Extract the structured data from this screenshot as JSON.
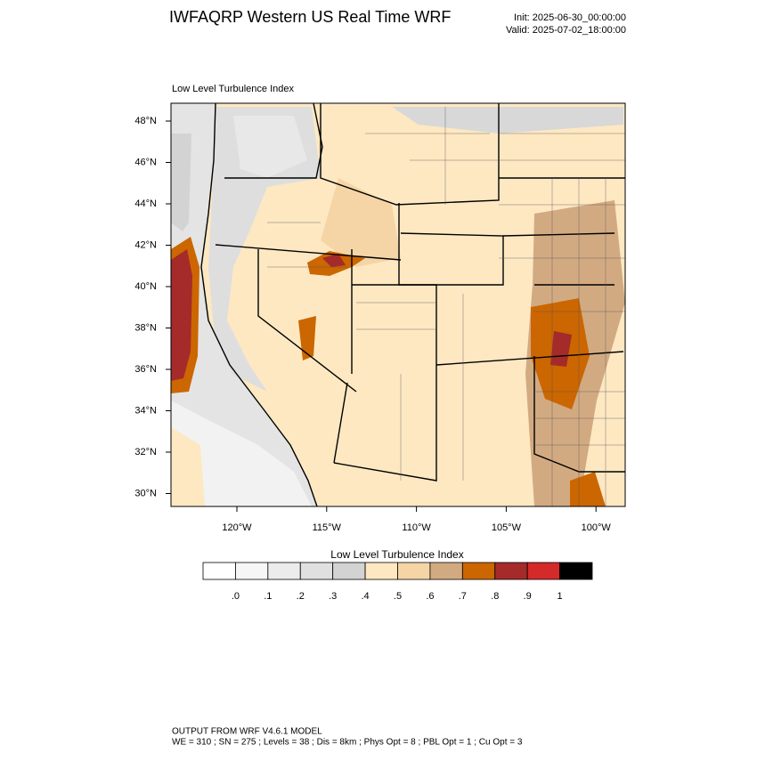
{
  "header": {
    "title": "IWFAQRP Western US Real Time WRF",
    "init": "Init: 2025-06-30_00:00:00",
    "valid": "Valid: 2025-07-02_18:00:00"
  },
  "map": {
    "subtitle": "Low Level Turbulence Index",
    "lat_labels": [
      "48°N",
      "46°N",
      "44°N",
      "42°N",
      "40°N",
      "38°N",
      "36°N",
      "34°N",
      "32°N",
      "30°N"
    ],
    "lon_labels": [
      "120°W",
      "115°W",
      "110°W",
      "105°W",
      "100°W"
    ]
  },
  "colorbar": {
    "title": "Low Level Turbulence Index",
    "labels": [
      ".0",
      ".1",
      ".2",
      ".3",
      ".4",
      ".5",
      ".6",
      ".7",
      ".8",
      ".9",
      "1"
    ],
    "colors": [
      "#ffffff",
      "#f6f6f6",
      "#ececec",
      "#e0e0e0",
      "#d3d3d3",
      "#fde8c2",
      "#f5d5a6",
      "#d2aa82",
      "#cc6600",
      "#a52a2a",
      "#d42a2a",
      "#000000"
    ]
  },
  "footer": {
    "line1": "OUTPUT FROM WRF V4.6.1 MODEL",
    "line2": "WE = 310 ; SN = 275 ; Levels = 38 ; Dis = 8km ; Phys Opt = 8 ; PBL Opt = 1 ; Cu Opt = 3"
  }
}
